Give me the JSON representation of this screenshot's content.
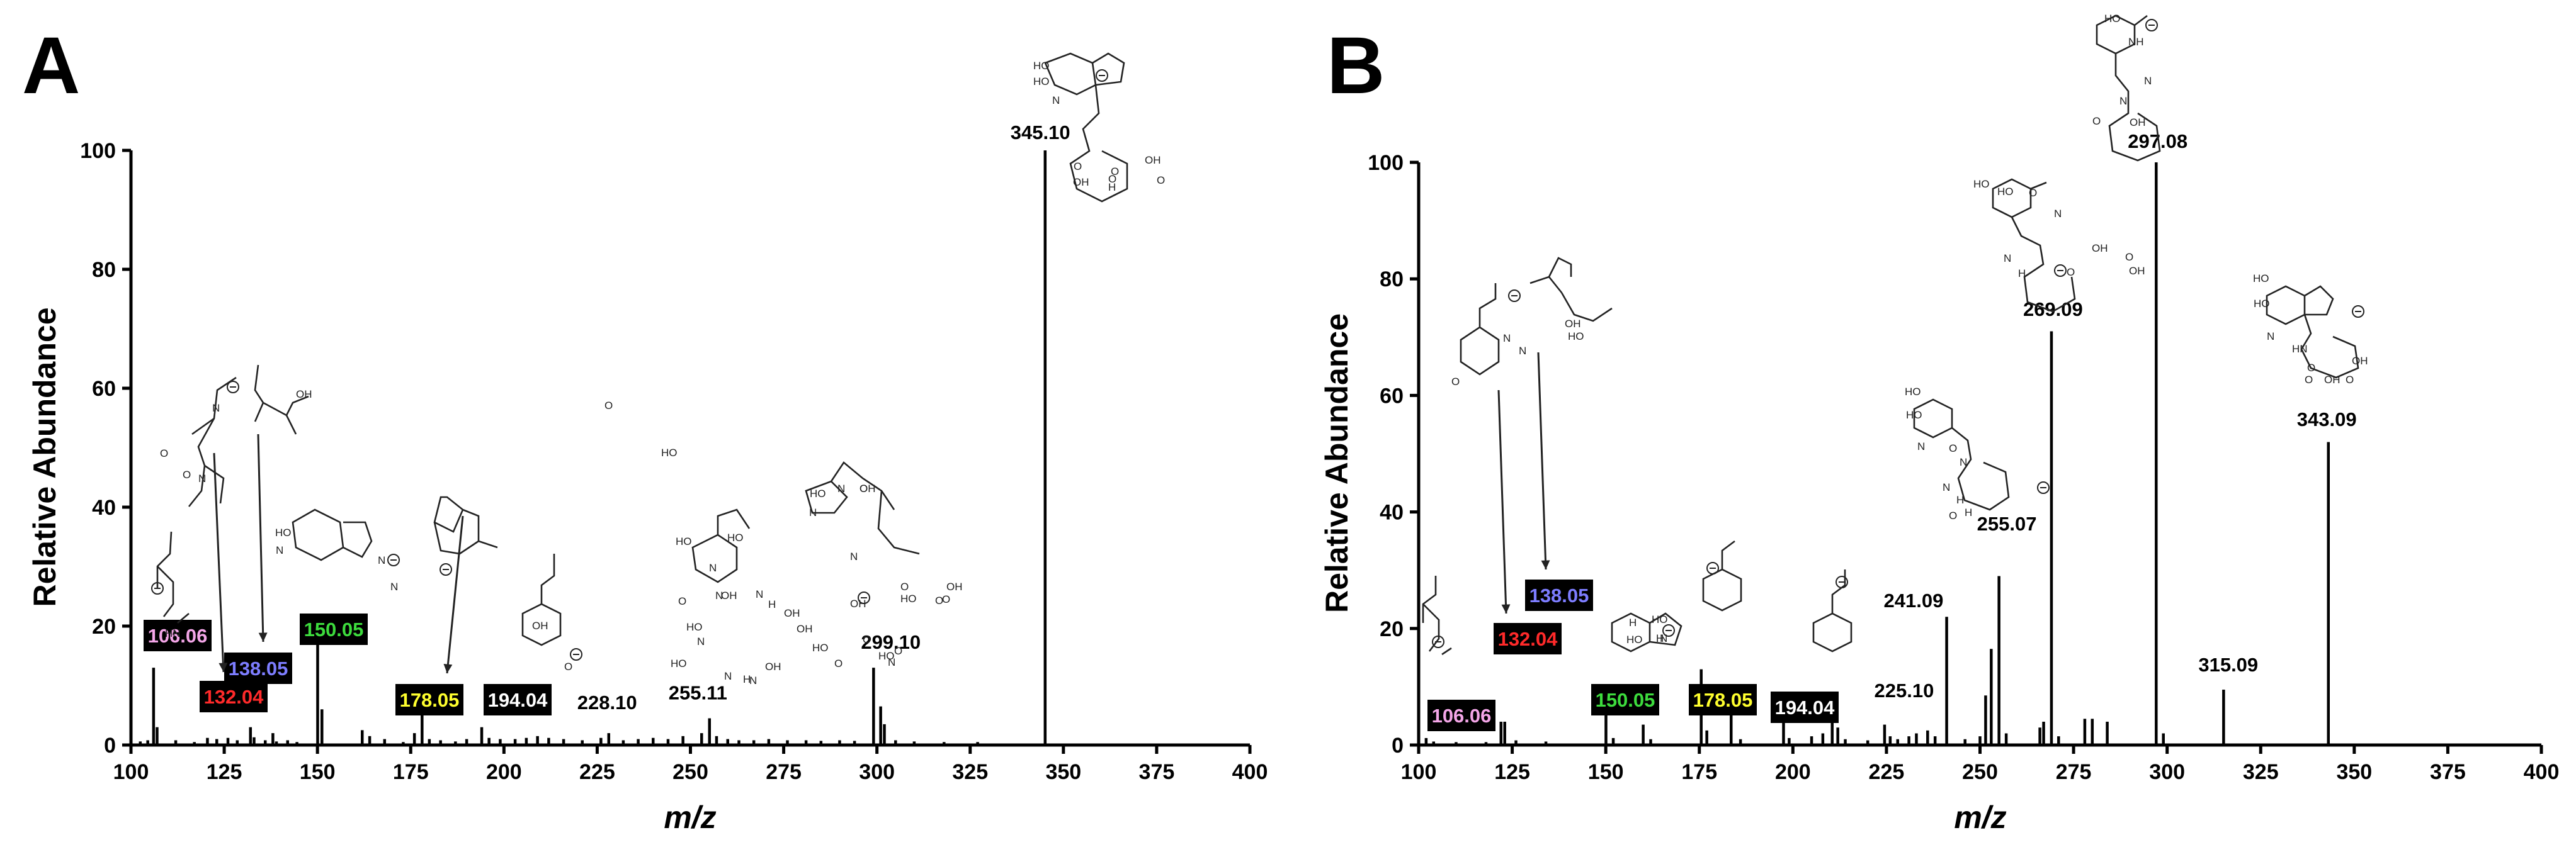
{
  "colors": {
    "box_bg": "#000000",
    "pink": "#f4a6e8",
    "red": "#ff2a2a",
    "blue": "#7d7dff",
    "green": "#3ddc3d",
    "yellow": "#ffff2e",
    "white": "#ffffff"
  },
  "chart_data": [
    {
      "type": "bar",
      "panel": "A",
      "xlabel": "m/z",
      "ylabel": "Relative Abundance",
      "xlim": [
        100,
        400
      ],
      "ylim": [
        0,
        100
      ],
      "xticks": [
        "100",
        "125",
        "150",
        "175",
        "200",
        "225",
        "250",
        "275",
        "300",
        "325",
        "350",
        "375",
        "400"
      ],
      "yticks": [
        "0",
        "20",
        "40",
        "60",
        "80",
        "100"
      ],
      "peaks": [
        {
          "mz": 102.5,
          "ab": 0.6
        },
        {
          "mz": 104.5,
          "ab": 0.8
        },
        {
          "mz": 106.06,
          "ab": 13
        },
        {
          "mz": 107.0,
          "ab": 3
        },
        {
          "mz": 112.0,
          "ab": 0.8
        },
        {
          "mz": 117.0,
          "ab": 0.5
        },
        {
          "mz": 120.5,
          "ab": 1.2
        },
        {
          "mz": 123.0,
          "ab": 1.0
        },
        {
          "mz": 126.0,
          "ab": 1.2
        },
        {
          "mz": 128.5,
          "ab": 0.8
        },
        {
          "mz": 132.04,
          "ab": 3
        },
        {
          "mz": 133.0,
          "ab": 1.3
        },
        {
          "mz": 136.0,
          "ab": 0.8
        },
        {
          "mz": 138.05,
          "ab": 2
        },
        {
          "mz": 139.0,
          "ab": 0.6
        },
        {
          "mz": 142.0,
          "ab": 0.8
        },
        {
          "mz": 144.5,
          "ab": 0.5
        },
        {
          "mz": 150.05,
          "ab": 19
        },
        {
          "mz": 151.2,
          "ab": 6
        },
        {
          "mz": 162.0,
          "ab": 2.5
        },
        {
          "mz": 164.0,
          "ab": 1.5
        },
        {
          "mz": 168.0,
          "ab": 1
        },
        {
          "mz": 173.0,
          "ab": 0.5
        },
        {
          "mz": 176.0,
          "ab": 2
        },
        {
          "mz": 178.05,
          "ab": 5
        },
        {
          "mz": 180.0,
          "ab": 1
        },
        {
          "mz": 183.0,
          "ab": 0.8
        },
        {
          "mz": 187.0,
          "ab": 0.6
        },
        {
          "mz": 190.0,
          "ab": 1
        },
        {
          "mz": 194.04,
          "ab": 3
        },
        {
          "mz": 196.0,
          "ab": 1.2
        },
        {
          "mz": 199.0,
          "ab": 1
        },
        {
          "mz": 203.0,
          "ab": 1
        },
        {
          "mz": 206.0,
          "ab": 1.2
        },
        {
          "mz": 209.0,
          "ab": 1.5
        },
        {
          "mz": 212.0,
          "ab": 1.2
        },
        {
          "mz": 216.0,
          "ab": 1
        },
        {
          "mz": 221.0,
          "ab": 0.8
        },
        {
          "mz": 226.0,
          "ab": 1.2
        },
        {
          "mz": 228.1,
          "ab": 2
        },
        {
          "mz": 232.0,
          "ab": 0.8
        },
        {
          "mz": 236.0,
          "ab": 1
        },
        {
          "mz": 240.0,
          "ab": 1.2
        },
        {
          "mz": 244.0,
          "ab": 1
        },
        {
          "mz": 248.0,
          "ab": 1.5
        },
        {
          "mz": 253.0,
          "ab": 2
        },
        {
          "mz": 255.11,
          "ab": 4.5
        },
        {
          "mz": 257.0,
          "ab": 1.5
        },
        {
          "mz": 260.0,
          "ab": 1
        },
        {
          "mz": 263.0,
          "ab": 0.8
        },
        {
          "mz": 267.0,
          "ab": 0.8
        },
        {
          "mz": 271.0,
          "ab": 1
        },
        {
          "mz": 276.0,
          "ab": 0.8
        },
        {
          "mz": 281.0,
          "ab": 0.8
        },
        {
          "mz": 285.0,
          "ab": 0.7
        },
        {
          "mz": 290.0,
          "ab": 0.8
        },
        {
          "mz": 294.0,
          "ab": 0.7
        },
        {
          "mz": 299.1,
          "ab": 13
        },
        {
          "mz": 301.0,
          "ab": 6.5
        },
        {
          "mz": 302.0,
          "ab": 3.5
        },
        {
          "mz": 305.0,
          "ab": 0.8
        },
        {
          "mz": 310.0,
          "ab": 0.6
        },
        {
          "mz": 318.0,
          "ab": 0.5
        },
        {
          "mz": 327.0,
          "ab": 0.5
        },
        {
          "mz": 345.1,
          "ab": 100
        }
      ],
      "peak_labels": [
        {
          "text": "345.10",
          "mz": 345.1
        },
        {
          "text": "299.10",
          "mz": 299.1
        },
        {
          "text": "255.11",
          "mz": 255.11
        },
        {
          "text": "228.10",
          "mz": 228.1
        }
      ],
      "boxed_labels": [
        {
          "text": "106.06",
          "color": "pink"
        },
        {
          "text": "132.04",
          "color": "red"
        },
        {
          "text": "138.05",
          "color": "blue"
        },
        {
          "text": "150.05",
          "color": "green"
        },
        {
          "text": "178.05",
          "color": "yellow"
        },
        {
          "text": "194.04",
          "color": "white"
        }
      ],
      "structure_labels": [
        "HN",
        "N",
        "OH",
        "O",
        "HO",
        "N",
        "N",
        "N",
        "OH",
        "O",
        "HO",
        "HO",
        "N",
        "O",
        "N",
        "OH",
        "HO",
        "N",
        "N",
        "N",
        "HO",
        "HO",
        "N",
        "O",
        "O",
        "OH",
        "O",
        "OH",
        "O",
        "O",
        "O",
        "OH",
        "HO",
        "H",
        "HO",
        "N",
        "N",
        "OH",
        "O",
        "O",
        "OH",
        "O",
        "HO",
        "O",
        "N",
        "H",
        "HO",
        "O",
        "N",
        "N",
        "OH",
        "OH",
        "HO",
        "O",
        "O",
        "HO",
        "N",
        "H",
        "OH"
      ]
    },
    {
      "type": "bar",
      "panel": "B",
      "xlabel": "m/z",
      "ylabel": "Relative Abundance",
      "xlim": [
        100,
        400
      ],
      "ylim": [
        0,
        100
      ],
      "xticks": [
        "100",
        "125",
        "150",
        "175",
        "200",
        "225",
        "250",
        "275",
        "300",
        "325",
        "350",
        "375",
        "400"
      ],
      "yticks": [
        "0",
        "20",
        "40",
        "60",
        "80",
        "100"
      ],
      "peaks": [
        {
          "mz": 102.0,
          "ab": 1.2
        },
        {
          "mz": 104.0,
          "ab": 0.6
        },
        {
          "mz": 110.0,
          "ab": 0.5
        },
        {
          "mz": 118.0,
          "ab": 0.5
        },
        {
          "mz": 122.0,
          "ab": 4
        },
        {
          "mz": 123.0,
          "ab": 4
        },
        {
          "mz": 126.0,
          "ab": 0.8
        },
        {
          "mz": 134.0,
          "ab": 0.6
        },
        {
          "mz": 150.05,
          "ab": 6
        },
        {
          "mz": 152.0,
          "ab": 1.2
        },
        {
          "mz": 160.0,
          "ab": 3.5
        },
        {
          "mz": 162.0,
          "ab": 1
        },
        {
          "mz": 175.5,
          "ab": 13
        },
        {
          "mz": 177.0,
          "ab": 2.5
        },
        {
          "mz": 183.5,
          "ab": 10
        },
        {
          "mz": 186.0,
          "ab": 1
        },
        {
          "mz": 197.5,
          "ab": 4
        },
        {
          "mz": 199.0,
          "ab": 1.2
        },
        {
          "mz": 205.0,
          "ab": 1.5
        },
        {
          "mz": 208.0,
          "ab": 2
        },
        {
          "mz": 210.5,
          "ab": 4
        },
        {
          "mz": 212.0,
          "ab": 3
        },
        {
          "mz": 214.0,
          "ab": 1
        },
        {
          "mz": 220.0,
          "ab": 0.8
        },
        {
          "mz": 224.5,
          "ab": 3.5
        },
        {
          "mz": 226.0,
          "ab": 1.5
        },
        {
          "mz": 228.0,
          "ab": 1
        },
        {
          "mz": 231.0,
          "ab": 1.5
        },
        {
          "mz": 233.0,
          "ab": 2
        },
        {
          "mz": 236.0,
          "ab": 2.5
        },
        {
          "mz": 238.0,
          "ab": 1.5
        },
        {
          "mz": 241.09,
          "ab": 22
        },
        {
          "mz": 246.0,
          "ab": 1
        },
        {
          "mz": 250.0,
          "ab": 1.5
        },
        {
          "mz": 251.5,
          "ab": 8.5
        },
        {
          "mz": 253.0,
          "ab": 16.5
        },
        {
          "mz": 255.07,
          "ab": 29
        },
        {
          "mz": 257.0,
          "ab": 2
        },
        {
          "mz": 266.0,
          "ab": 3
        },
        {
          "mz": 267.0,
          "ab": 4
        },
        {
          "mz": 269.09,
          "ab": 71
        },
        {
          "mz": 271.0,
          "ab": 1.5
        },
        {
          "mz": 278.0,
          "ab": 4.5
        },
        {
          "mz": 280.0,
          "ab": 4.5
        },
        {
          "mz": 284.0,
          "ab": 4
        },
        {
          "mz": 297.08,
          "ab": 100
        },
        {
          "mz": 299.0,
          "ab": 2
        },
        {
          "mz": 315.09,
          "ab": 9.5
        },
        {
          "mz": 343.09,
          "ab": 52
        }
      ],
      "peak_labels": [
        {
          "text": "297.08",
          "mz": 297.08
        },
        {
          "text": "269.09",
          "mz": 269.09
        },
        {
          "text": "343.09",
          "mz": 343.09
        },
        {
          "text": "255.07",
          "mz": 255.07
        },
        {
          "text": "241.09",
          "mz": 241.09
        },
        {
          "text": "315.09",
          "mz": 315.09
        },
        {
          "text": "225.10",
          "mz": 225.1
        }
      ],
      "boxed_labels": [
        {
          "text": "138.05",
          "color": "blue"
        },
        {
          "text": "132.04",
          "color": "red"
        },
        {
          "text": "178.05",
          "color": "yellow"
        },
        {
          "text": "150.05",
          "color": "green"
        },
        {
          "text": "194.04",
          "color": "white"
        },
        {
          "text": "106.06",
          "color": "pink"
        }
      ],
      "structure_labels": [
        "HO",
        "NH",
        "O",
        "N",
        "N",
        "OH",
        "HO",
        "N",
        "H",
        "O",
        "HO",
        "O",
        "N",
        "OH",
        "O",
        "OH",
        "HO",
        "HO",
        "N",
        "O",
        "N",
        "H",
        "O",
        "N",
        "H",
        "HO",
        "HO",
        "N",
        "HN",
        "O",
        "OH",
        "O",
        "OH",
        "O",
        "O",
        "N",
        "N",
        "OH",
        "HO",
        "H",
        "HO",
        "HO",
        "N",
        "H"
      ]
    }
  ]
}
